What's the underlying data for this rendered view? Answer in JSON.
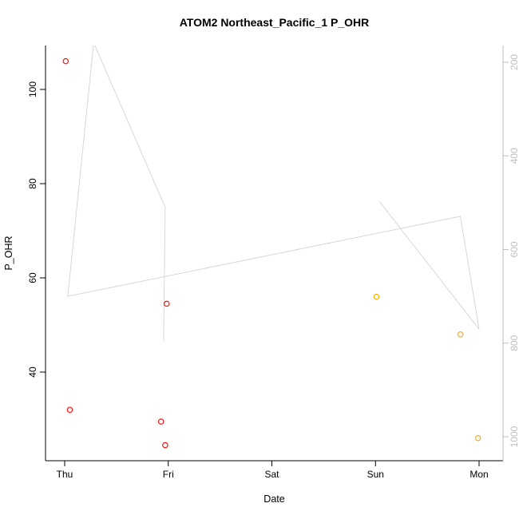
{
  "chart_data": {
    "type": "scatter",
    "title": "ATOM2 Northeast_Pacific_1 P_OHR",
    "xlabel": "Date",
    "ylabel": "P_OHR",
    "x_ticks": [
      "Thu",
      "Fri",
      "Sat",
      "Sun",
      "Mon"
    ],
    "y_left": {
      "ticks": [
        40,
        60,
        80,
        100
      ],
      "range": [
        21,
        109.5
      ]
    },
    "y_right": {
      "ticks": [
        200,
        400,
        600,
        800,
        1000
      ],
      "range": [
        1051,
        164
      ],
      "reversed": true,
      "color": "#bebebe"
    },
    "grid": false,
    "legend": "none",
    "colors": {
      "axis": "#000000",
      "red": "#ff0000",
      "orange": "#ffa500"
    },
    "points": [
      {
        "x": 0.01,
        "y": 106,
        "color": "red"
      },
      {
        "x": 0.05,
        "y": 32,
        "color": "red"
      },
      {
        "x": 0.985,
        "y": 54.5,
        "color": "red"
      },
      {
        "x": 0.93,
        "y": 29.5,
        "color": "red"
      },
      {
        "x": 0.97,
        "y": 24.5,
        "color": "red"
      },
      {
        "x": 3.01,
        "y": 56,
        "color": "orange"
      },
      {
        "x": 3.82,
        "y": 48,
        "color": "orange"
      },
      {
        "x": 3.99,
        "y": 26,
        "color": "orange"
      }
    ],
    "line_series": {
      "axis": "right",
      "color": "#d3d3d3",
      "points": [
        [
          0.955,
          795
        ],
        [
          0.97,
          510
        ],
        [
          0.28,
          158
        ],
        [
          0.03,
          700
        ],
        [
          3.82,
          529
        ],
        [
          4.0,
          770
        ],
        [
          3.04,
          498
        ]
      ]
    }
  }
}
